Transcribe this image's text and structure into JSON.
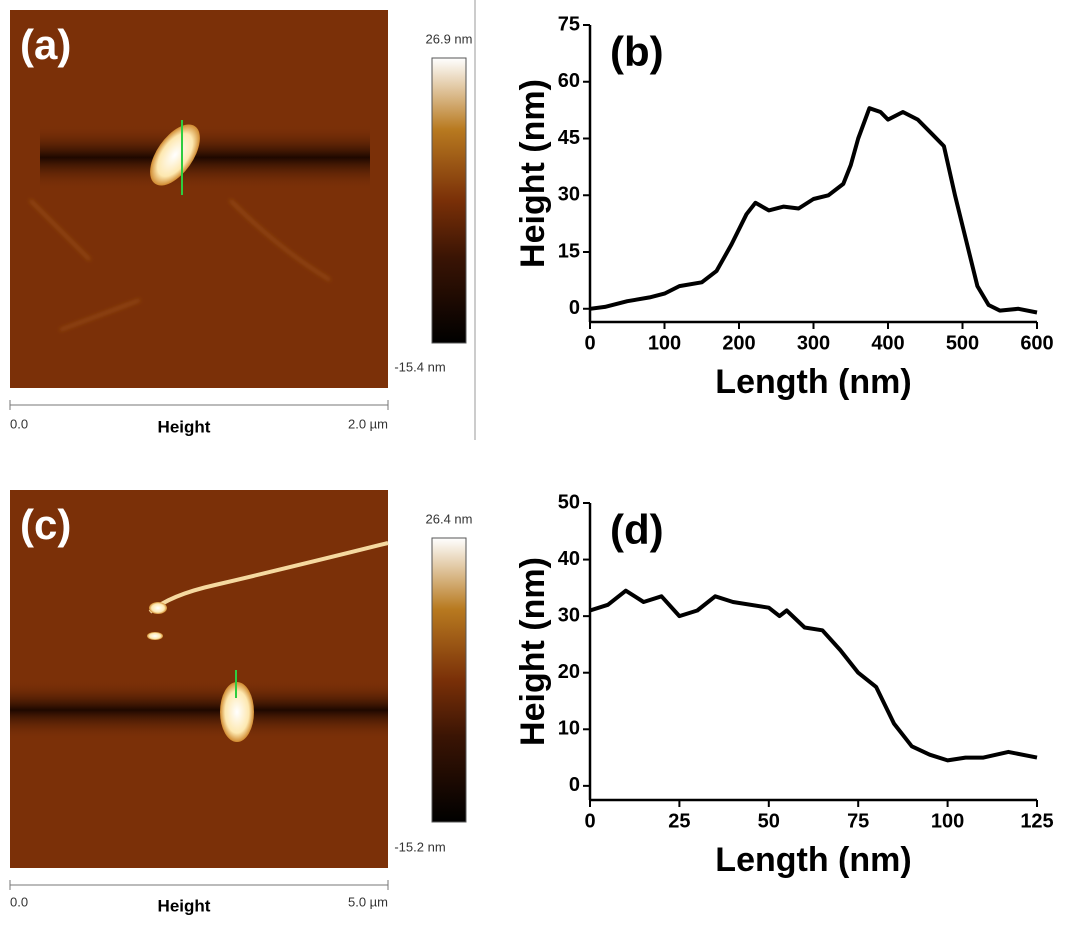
{
  "afm_panels": [
    {
      "label": "(a)",
      "max": "26.9 nm",
      "min": "-15.4 nm",
      "scale_start": "0.0",
      "channel": "Height",
      "scale_end": "2.0 µm"
    },
    {
      "label": "(c)",
      "max": "26.4 nm",
      "min": "-15.2 nm",
      "scale_start": "0.0",
      "channel": "Height",
      "scale_end": "5.0 µm"
    }
  ],
  "chart_data": [
    {
      "type": "line",
      "label": "(b)",
      "xlabel": "Length (nm)",
      "ylabel": "Height (nm)",
      "color": "#000000",
      "x": [
        0,
        20,
        50,
        80,
        100,
        120,
        150,
        170,
        190,
        210,
        222,
        240,
        260,
        280,
        300,
        320,
        340,
        350,
        360,
        375,
        390,
        400,
        420,
        440,
        460,
        475,
        490,
        505,
        520,
        535,
        550,
        575,
        600
      ],
      "values": [
        0,
        0.5,
        2,
        3,
        4,
        6,
        7,
        10,
        17,
        25,
        28,
        26,
        27,
        26.5,
        29,
        30,
        33,
        38,
        45,
        53,
        52,
        50,
        52,
        50,
        46,
        43,
        30,
        18,
        6,
        1,
        -0.5,
        0,
        -1
      ],
      "xlim": [
        0,
        600
      ],
      "ylim": [
        -3.5,
        75
      ],
      "xticks": [
        0,
        100,
        200,
        300,
        400,
        500,
        600
      ],
      "yticks": [
        0,
        15,
        30,
        45,
        60,
        75
      ]
    },
    {
      "type": "line",
      "label": "(d)",
      "xlabel": "Length (nm)",
      "ylabel": "Height (nm)",
      "color": "#000000",
      "x": [
        0,
        5,
        10,
        15,
        20,
        25,
        30,
        35,
        40,
        50,
        53,
        55,
        60,
        65,
        70,
        75,
        80,
        85,
        90,
        95,
        100,
        105,
        110,
        117,
        125
      ],
      "values": [
        31,
        32,
        34.5,
        32.5,
        33.5,
        30,
        31,
        33.5,
        32.5,
        31.5,
        30,
        31,
        28,
        27.5,
        24,
        20,
        17.5,
        11,
        7,
        5.5,
        4.5,
        5,
        5,
        6,
        5
      ],
      "xlim": [
        0,
        125
      ],
      "ylim": [
        -2.5,
        50
      ],
      "xticks": [
        0,
        25,
        50,
        75,
        100,
        125
      ],
      "yticks": [
        0,
        10,
        20,
        30,
        40,
        50
      ]
    }
  ]
}
